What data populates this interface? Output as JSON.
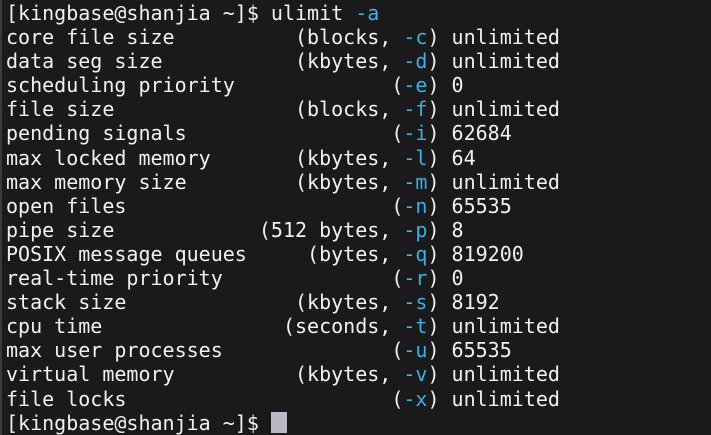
{
  "terminal": {
    "colors": {
      "background": "#1a1a1a",
      "foreground": "#f1f1f1",
      "flag_accent": "#3cafe4",
      "cursor": "#b9b9c4",
      "left_edge": "#3a3a3a"
    },
    "prompt_line": {
      "prompt": "[kingbase@shanjia ~]$ ",
      "command": "ulimit ",
      "flag": "-a"
    },
    "output_lines": [
      {
        "pre": "core file size          (blocks, ",
        "flag": "-c",
        "post": ") unlimited"
      },
      {
        "pre": "data seg size           (kbytes, ",
        "flag": "-d",
        "post": ") unlimited"
      },
      {
        "pre": "scheduling priority             (",
        "flag": "-e",
        "post": ") 0"
      },
      {
        "pre": "file size               (blocks, ",
        "flag": "-f",
        "post": ") unlimited"
      },
      {
        "pre": "pending signals                 (",
        "flag": "-i",
        "post": ") 62684"
      },
      {
        "pre": "max locked memory       (kbytes, ",
        "flag": "-l",
        "post": ") 64"
      },
      {
        "pre": "max memory size         (kbytes, ",
        "flag": "-m",
        "post": ") unlimited"
      },
      {
        "pre": "open files                      (",
        "flag": "-n",
        "post": ") 65535"
      },
      {
        "pre": "pipe size            (512 bytes, ",
        "flag": "-p",
        "post": ") 8"
      },
      {
        "pre": "POSIX message queues     (bytes, ",
        "flag": "-q",
        "post": ") 819200"
      },
      {
        "pre": "real-time priority              (",
        "flag": "-r",
        "post": ") 0"
      },
      {
        "pre": "stack size              (kbytes, ",
        "flag": "-s",
        "post": ") 8192"
      },
      {
        "pre": "cpu time               (seconds, ",
        "flag": "-t",
        "post": ") unlimited"
      },
      {
        "pre": "max user processes              (",
        "flag": "-u",
        "post": ") 65535"
      },
      {
        "pre": "virtual memory          (kbytes, ",
        "flag": "-v",
        "post": ") unlimited"
      },
      {
        "pre": "file locks                      (",
        "flag": "-x",
        "post": ") unlimited"
      }
    ],
    "final_prompt": "[kingbase@shanjia ~]$ "
  }
}
